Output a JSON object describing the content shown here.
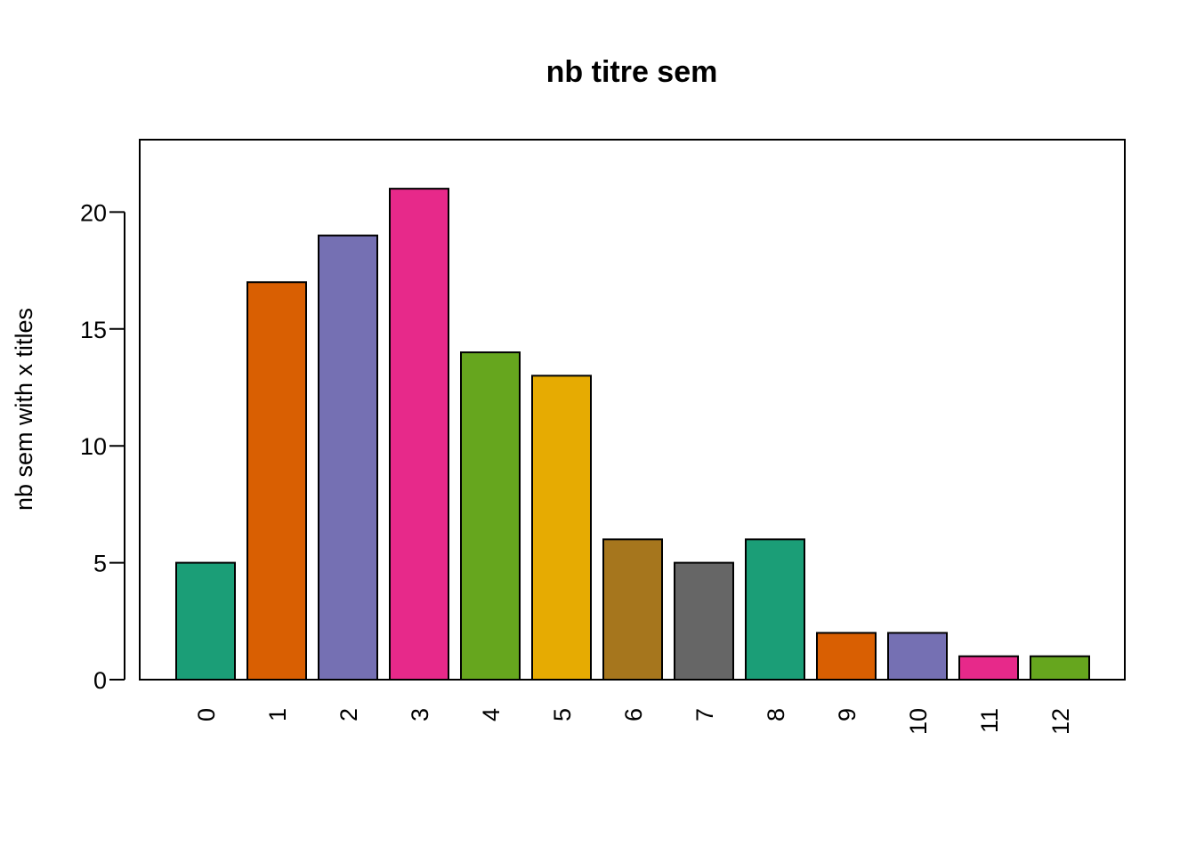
{
  "chart_data": {
    "type": "bar",
    "title": "nb titre sem",
    "xlabel": "",
    "ylabel": "nb sem with x titles",
    "categories": [
      "0",
      "1",
      "2",
      "3",
      "4",
      "5",
      "6",
      "7",
      "8",
      "9",
      "10",
      "11",
      "12"
    ],
    "values": [
      5,
      17,
      19,
      21,
      14,
      13,
      6,
      5,
      6,
      2,
      2,
      1,
      1
    ],
    "colors": [
      "#1b9e77",
      "#d95f02",
      "#7570b3",
      "#e7298a",
      "#66a61e",
      "#e6ab02",
      "#a6761d",
      "#666666",
      "#1b9e77",
      "#d95f02",
      "#7570b3",
      "#e7298a",
      "#66a61e"
    ],
    "ylim": [
      0,
      23
    ],
    "yticks": [
      0,
      5,
      10,
      15,
      20
    ],
    "x_tick_label_orientation": "vertical",
    "grid": false,
    "legend": "none"
  }
}
